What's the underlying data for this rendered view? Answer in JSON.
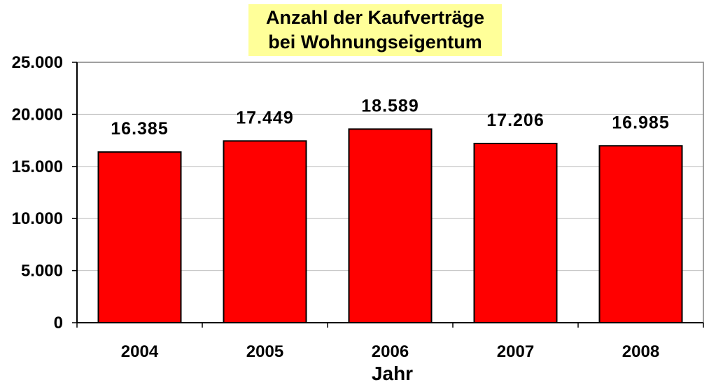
{
  "chart_data": {
    "type": "bar",
    "title": "Anzahl der Kaufverträge bei Wohnungseigentum",
    "title_lines": [
      "Anzahl der Kaufverträge",
      "bei Wohnungseigentum"
    ],
    "xlabel": "Jahr",
    "ylabel": "",
    "categories": [
      "2004",
      "2005",
      "2006",
      "2007",
      "2008"
    ],
    "values": [
      16385,
      17449,
      18589,
      17206,
      16985
    ],
    "value_labels": [
      "16.385",
      "17.449",
      "18.589",
      "17.206",
      "16.985"
    ],
    "ylim": [
      0,
      25000
    ],
    "yticks": [
      0,
      5000,
      10000,
      15000,
      20000,
      25000
    ],
    "ytick_labels": [
      "0",
      "5.000",
      "10.000",
      "15.000",
      "20.000",
      "25.000"
    ],
    "grid": true,
    "legend": "none",
    "colors": {
      "bar_fill": "#ff0000",
      "bar_stroke": "#000000",
      "title_background": "#ffff99",
      "grid": "#c0c0c0",
      "plot_border": "#808080"
    }
  }
}
